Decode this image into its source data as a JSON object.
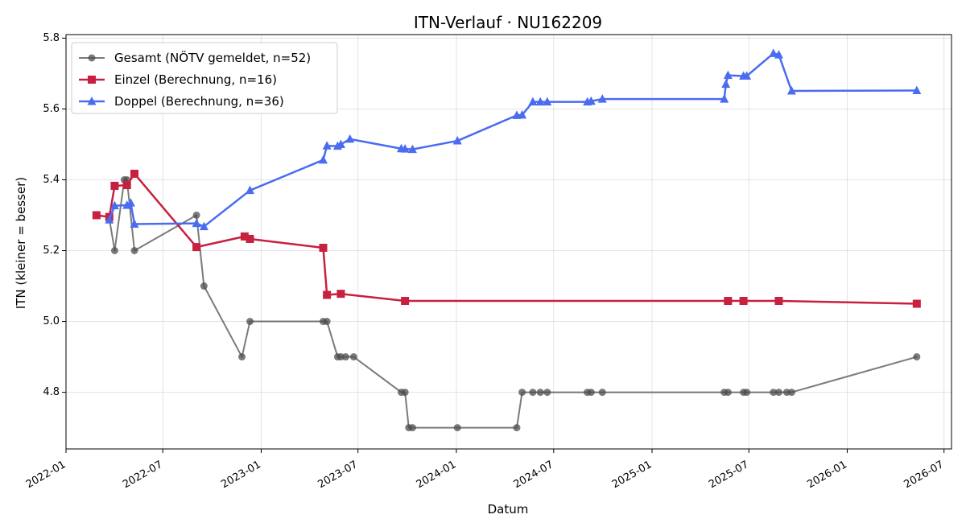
{
  "chart_data": {
    "type": "line",
    "title": "ITN-Verlauf · NU162209",
    "xlabel": "Datum",
    "ylabel": "ITN  (kleiner = besser)",
    "x_type": "date",
    "xlim": [
      "2022-01-01",
      "2026-07-15"
    ],
    "ylim": [
      4.64,
      5.81
    ],
    "x_ticks": [
      "2022-01-01",
      "2022-07-01",
      "2023-01-01",
      "2023-07-01",
      "2024-01-01",
      "2024-07-01",
      "2025-01-01",
      "2025-07-01",
      "2026-01-01",
      "2026-07-01"
    ],
    "x_tick_labels": [
      "2022-01",
      "2022-07",
      "2023-01",
      "2023-07",
      "2024-01",
      "2024-07",
      "2025-01",
      "2025-07",
      "2026-01",
      "2026-07"
    ],
    "y_ticks": [
      4.8,
      5.0,
      5.2,
      5.4,
      5.6,
      5.8
    ],
    "y_tick_labels": [
      "4.8",
      "5.0",
      "5.2",
      "5.4",
      "5.6",
      "5.8"
    ],
    "grid": true,
    "legend_position": "top-left",
    "series": [
      {
        "name": "Gesamt (NÖTV gemeldet, n=52)",
        "color": "#4d4d4d",
        "marker": "circle",
        "points": [
          [
            "2022-03-23",
            5.29
          ],
          [
            "2022-04-02",
            5.2
          ],
          [
            "2022-04-20",
            5.4
          ],
          [
            "2022-04-25",
            5.4
          ],
          [
            "2022-05-09",
            5.2
          ],
          [
            "2022-09-02",
            5.3
          ],
          [
            "2022-09-16",
            5.1
          ],
          [
            "2022-11-26",
            4.9
          ],
          [
            "2022-12-11",
            5.0
          ],
          [
            "2023-04-27",
            5.0
          ],
          [
            "2023-05-04",
            5.0
          ],
          [
            "2023-05-24",
            4.9
          ],
          [
            "2023-05-30",
            4.9
          ],
          [
            "2023-06-08",
            4.9
          ],
          [
            "2023-06-23",
            4.9
          ],
          [
            "2023-09-20",
            4.8
          ],
          [
            "2023-09-27",
            4.8
          ],
          [
            "2023-10-04",
            4.7
          ],
          [
            "2023-10-11",
            4.7
          ],
          [
            "2024-01-03",
            4.7
          ],
          [
            "2024-04-23",
            4.7
          ],
          [
            "2024-05-03",
            4.8
          ],
          [
            "2024-05-23",
            4.8
          ],
          [
            "2024-06-06",
            4.8
          ],
          [
            "2024-06-19",
            4.8
          ],
          [
            "2024-09-02",
            4.8
          ],
          [
            "2024-09-09",
            4.8
          ],
          [
            "2024-09-30",
            4.8
          ],
          [
            "2025-05-16",
            4.8
          ],
          [
            "2025-05-23",
            4.8
          ],
          [
            "2025-06-21",
            4.8
          ],
          [
            "2025-06-27",
            4.8
          ],
          [
            "2025-08-16",
            4.8
          ],
          [
            "2025-08-26",
            4.8
          ],
          [
            "2025-09-10",
            4.8
          ],
          [
            "2025-09-19",
            4.8
          ],
          [
            "2026-05-11",
            4.9
          ]
        ]
      },
      {
        "name": "Einzel (Berechnung, n=16)",
        "color": "#c8203f",
        "marker": "square",
        "points": [
          [
            "2022-02-27",
            5.3
          ],
          [
            "2022-03-23",
            5.295
          ],
          [
            "2022-04-02",
            5.383
          ],
          [
            "2022-04-25",
            5.385
          ],
          [
            "2022-05-09",
            5.417
          ],
          [
            "2022-09-02",
            5.21
          ],
          [
            "2022-12-01",
            5.24
          ],
          [
            "2022-12-11",
            5.233
          ],
          [
            "2023-04-27",
            5.208
          ],
          [
            "2023-05-04",
            5.075
          ],
          [
            "2023-05-30",
            5.078
          ],
          [
            "2023-09-27",
            5.058
          ],
          [
            "2025-05-23",
            5.058
          ],
          [
            "2025-06-21",
            5.058
          ],
          [
            "2025-08-26",
            5.058
          ],
          [
            "2026-05-11",
            5.05
          ]
        ]
      },
      {
        "name": "Doppel (Berechnung, n=36)",
        "color": "#4a6cf0",
        "marker": "triangle",
        "points": [
          [
            "2022-03-23",
            5.287
          ],
          [
            "2022-04-02",
            5.327
          ],
          [
            "2022-04-25",
            5.328
          ],
          [
            "2022-05-02",
            5.335
          ],
          [
            "2022-05-09",
            5.275
          ],
          [
            "2022-09-02",
            5.277
          ],
          [
            "2022-09-16",
            5.268
          ],
          [
            "2022-12-11",
            5.37
          ],
          [
            "2023-04-27",
            5.456
          ],
          [
            "2023-05-04",
            5.496
          ],
          [
            "2023-05-24",
            5.495
          ],
          [
            "2023-05-30",
            5.5
          ],
          [
            "2023-06-16",
            5.515
          ],
          [
            "2023-09-20",
            5.488
          ],
          [
            "2023-09-27",
            5.487
          ],
          [
            "2023-10-11",
            5.486
          ],
          [
            "2024-01-03",
            5.51
          ],
          [
            "2024-04-23",
            5.582
          ],
          [
            "2024-05-03",
            5.583
          ],
          [
            "2024-05-23",
            5.62
          ],
          [
            "2024-06-06",
            5.62
          ],
          [
            "2024-06-19",
            5.62
          ],
          [
            "2024-09-02",
            5.62
          ],
          [
            "2024-09-09",
            5.622
          ],
          [
            "2024-09-30",
            5.628
          ],
          [
            "2025-05-16",
            5.628
          ],
          [
            "2025-05-19",
            5.67
          ],
          [
            "2025-05-23",
            5.695
          ],
          [
            "2025-06-21",
            5.693
          ],
          [
            "2025-06-27",
            5.693
          ],
          [
            "2025-08-16",
            5.757
          ],
          [
            "2025-08-26",
            5.753
          ],
          [
            "2025-09-19",
            5.651
          ],
          [
            "2026-05-11",
            5.652
          ]
        ]
      }
    ]
  }
}
